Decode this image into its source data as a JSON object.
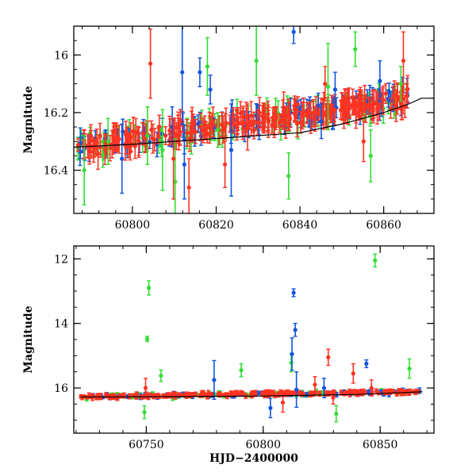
{
  "colors": {
    "green": "#33dd33",
    "blue": "#1155dd",
    "red": "#ff3322",
    "model": "#000000"
  },
  "chart_data": [
    {
      "type": "scatter",
      "xlabel": "",
      "ylabel": "Magnitude",
      "xlim": [
        60786,
        60872
      ],
      "ylim": [
        16.55,
        15.9
      ],
      "y_inverted": true,
      "grid": false,
      "x_ticks": [
        60800,
        60820,
        60840,
        60860
      ],
      "y_ticks": [
        16,
        16.2,
        16.4
      ],
      "x_tick_labels": [
        "60800",
        "60820",
        "60840",
        "60860"
      ],
      "y_tick_labels": [
        "16",
        "16.2",
        "16.4"
      ],
      "model_curve": {
        "x": [
          60786,
          60800,
          60820,
          60840,
          60850,
          60860,
          60866,
          60869,
          60872
        ],
        "y": [
          16.32,
          16.31,
          16.29,
          16.27,
          16.24,
          16.2,
          16.17,
          16.15,
          16.15
        ]
      },
      "series": [
        {
          "color_key": "blue",
          "x": [
            60797.5,
            60809.5,
            60811.9,
            60812.4,
            60816.1,
            60818.6,
            60823.6,
            60838.5,
            60845.1,
            60848.4,
            60859.1
          ],
          "y": [
            16.36,
            16.25,
            16.06,
            16.38,
            16.06,
            16.12,
            16.33,
            15.92,
            16.23,
            16.12,
            16.09
          ],
          "err": [
            0.12,
            0.07,
            0.18,
            0.12,
            0.05,
            0.05,
            0.16,
            0.04,
            0.06,
            0.06,
            0.07
          ]
        },
        {
          "color_key": "green",
          "x": [
            60788.5,
            60794.2,
            60803.6,
            60807.2,
            60810.2,
            60817.9,
            60820.4,
            60829.6,
            60837.3,
            60846.7,
            60853.2,
            60856.9,
            60864.1
          ],
          "y": [
            16.4,
            16.3,
            16.28,
            16.33,
            16.44,
            16.04,
            16.26,
            16.02,
            16.42,
            16.11,
            15.98,
            16.35,
            16.1
          ],
          "err": [
            0.12,
            0.08,
            0.1,
            0.14,
            0.15,
            0.1,
            0.06,
            0.12,
            0.08,
            0.15,
            0.06,
            0.09,
            0.06
          ]
        },
        {
          "color_key": "red",
          "x": [
            60804.3,
            60809.8,
            60813.5,
            60822.1,
            60827.5,
            60846.0,
            60855.2,
            60864.7
          ],
          "y": [
            16.03,
            16.36,
            16.46,
            16.38,
            16.25,
            16.1,
            16.3,
            16.02
          ],
          "err": [
            0.12,
            0.14,
            0.1,
            0.08,
            0.08,
            0.06,
            0.07,
            0.1
          ]
        }
      ],
      "dense_band": {
        "x_start": 60787,
        "x_end": 60866,
        "y_start": 16.32,
        "y_end": 16.15,
        "scatter": 0.03
      }
    },
    {
      "type": "scatter",
      "xlabel": "HJD−2400000",
      "ylabel": "Magnitude",
      "xlim": [
        60719,
        60873
      ],
      "ylim": [
        17.4,
        11.6
      ],
      "y_inverted": true,
      "grid": false,
      "x_ticks": [
        60750,
        60800,
        60850
      ],
      "y_ticks": [
        12,
        14,
        16
      ],
      "x_tick_labels": [
        "60750",
        "60800",
        "60850"
      ],
      "y_tick_labels": [
        "12",
        "14",
        "16"
      ],
      "model_curve": {
        "x": [
          60722,
          60760,
          60800,
          60840,
          60868
        ],
        "y": [
          16.28,
          16.27,
          16.25,
          16.2,
          16.12
        ]
      },
      "series": [
        {
          "color_key": "green",
          "x": [
            60751.1,
            60750.4,
            60749.2,
            60790.6,
            60812.0,
            60847.8,
            60862.5,
            60831.2,
            60756.3
          ],
          "y": [
            12.9,
            14.48,
            16.75,
            15.45,
            15.22,
            12.05,
            15.4,
            16.8,
            15.62
          ],
          "err": [
            0.22,
            0.08,
            0.2,
            0.2,
            0.28,
            0.2,
            0.3,
            0.25,
            0.18
          ]
        },
        {
          "color_key": "blue",
          "x": [
            60813.0,
            60813.7,
            60812.3,
            60779.0,
            60814.2,
            60844.1,
            60826.0,
            60803.1
          ],
          "y": [
            13.05,
            14.2,
            14.95,
            15.75,
            16.05,
            15.25,
            16.0,
            16.62
          ],
          "err": [
            0.12,
            0.2,
            0.5,
            0.6,
            0.55,
            0.12,
            0.3,
            0.3
          ]
        },
        {
          "color_key": "red",
          "x": [
            60749.7,
            60822.1,
            60827.8,
            60838.5,
            60846.3,
            60808.4,
            60829.9
          ],
          "y": [
            16.0,
            15.9,
            15.05,
            15.55,
            16.0,
            16.45,
            16.3
          ],
          "err": [
            0.3,
            0.25,
            0.25,
            0.3,
            0.25,
            0.3,
            0.2
          ]
        }
      ],
      "dense_band": {
        "x_start": 60722,
        "x_end": 60867,
        "y_start": 16.27,
        "y_end": 16.12,
        "scatter": 0.05
      }
    }
  ]
}
